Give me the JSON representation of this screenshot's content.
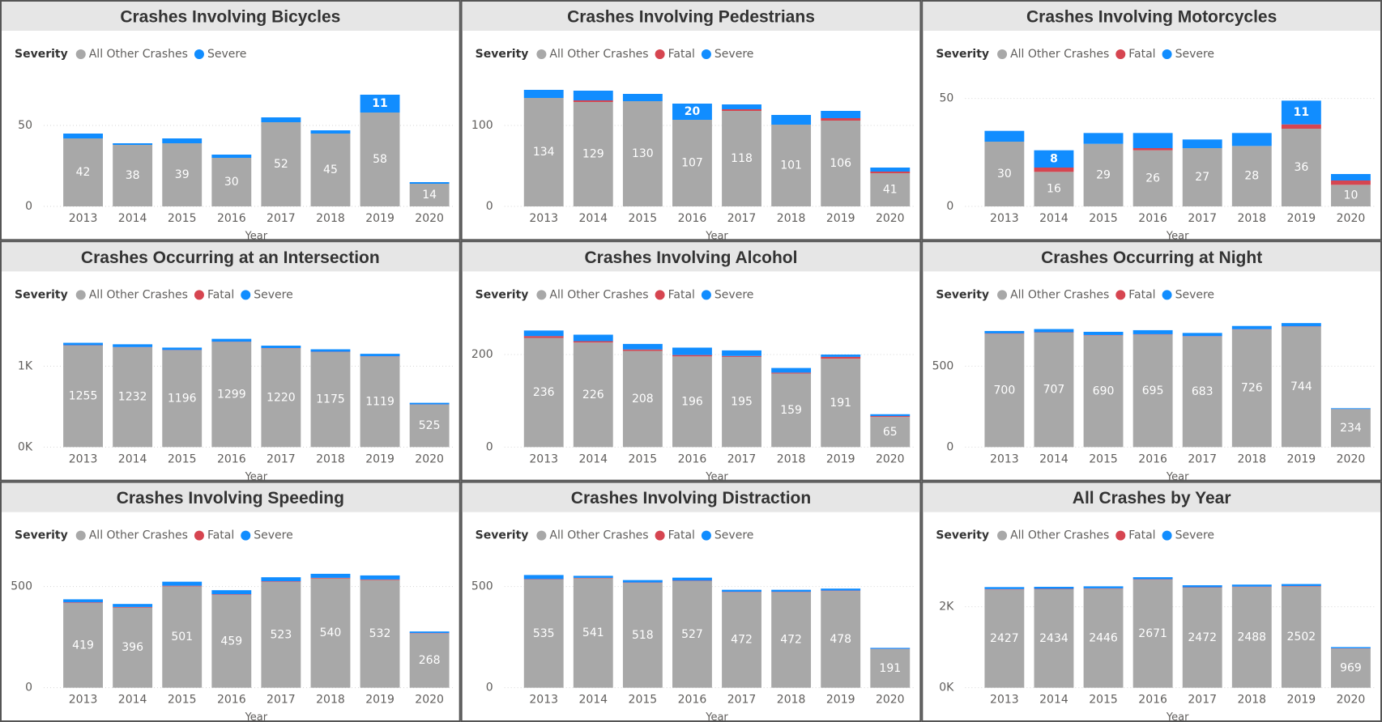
{
  "chart_data": [
    {
      "type": "bar",
      "title": "Crashes Involving Bicycles",
      "legend_title": "Severity",
      "x_label": "Year",
      "categories": [
        "2013",
        "2014",
        "2015",
        "2016",
        "2017",
        "2018",
        "2019",
        "2020"
      ],
      "series": [
        {
          "name": "All Other Crashes",
          "color": "#a8a8a8",
          "values": [
            42,
            38,
            39,
            30,
            52,
            45,
            58,
            14
          ],
          "data_labels": true
        },
        {
          "name": "Severe",
          "color": "#118dff",
          "values": [
            3,
            1,
            3,
            2,
            3,
            2,
            11,
            1
          ],
          "value_labels": [
            null,
            null,
            null,
            null,
            null,
            null,
            "11",
            null
          ]
        }
      ],
      "ylim": [
        0,
        80
      ],
      "yticks": [
        0,
        50
      ],
      "grid": true
    },
    {
      "type": "bar",
      "title": "Crashes Involving Pedestrians",
      "legend_title": "Severity",
      "x_label": "Year",
      "categories": [
        "2013",
        "2014",
        "2015",
        "2016",
        "2017",
        "2018",
        "2019",
        "2020"
      ],
      "series": [
        {
          "name": "All Other Crashes",
          "color": "#a8a8a8",
          "values": [
            134,
            129,
            130,
            107,
            118,
            101,
            106,
            41
          ],
          "data_labels": true
        },
        {
          "name": "Fatal",
          "color": "#d64550",
          "values": [
            0,
            2,
            0,
            0,
            2,
            0,
            3,
            2
          ]
        },
        {
          "name": "Severe",
          "color": "#118dff",
          "values": [
            10,
            12,
            9,
            20,
            6,
            12,
            9,
            5
          ],
          "value_labels": [
            null,
            null,
            null,
            "20",
            null,
            null,
            null,
            null
          ]
        }
      ],
      "ylim": [
        0,
        160
      ],
      "yticks": [
        0,
        100
      ],
      "grid": true
    },
    {
      "type": "bar",
      "title": "Crashes Involving Motorcycles",
      "legend_title": "Severity",
      "x_label": "Year",
      "categories": [
        "2013",
        "2014",
        "2015",
        "2016",
        "2017",
        "2018",
        "2019",
        "2020"
      ],
      "series": [
        {
          "name": "All Other Crashes",
          "color": "#a8a8a8",
          "values": [
            30,
            16,
            29,
            26,
            27,
            28,
            36,
            10
          ],
          "data_labels": true
        },
        {
          "name": "Fatal",
          "color": "#d64550",
          "values": [
            0,
            2,
            0,
            1,
            0,
            0,
            2,
            2
          ]
        },
        {
          "name": "Severe",
          "color": "#118dff",
          "values": [
            5,
            8,
            5,
            7,
            4,
            6,
            11,
            3
          ],
          "value_labels": [
            null,
            "8",
            null,
            null,
            null,
            null,
            "11",
            null
          ]
        }
      ],
      "ylim": [
        0,
        60
      ],
      "yticks": [
        0,
        50
      ],
      "grid": true
    },
    {
      "type": "bar",
      "title": "Crashes Occurring at an Intersection",
      "legend_title": "Severity",
      "x_label": "Year",
      "categories": [
        "2013",
        "2014",
        "2015",
        "2016",
        "2017",
        "2018",
        "2019",
        "2020"
      ],
      "series": [
        {
          "name": "All Other Crashes",
          "color": "#a8a8a8",
          "values": [
            1255,
            1232,
            1196,
            1299,
            1220,
            1175,
            1119,
            525
          ],
          "data_labels": true
        },
        {
          "name": "Fatal",
          "color": "#d64550",
          "values": [
            3,
            3,
            3,
            3,
            3,
            3,
            3,
            2
          ]
        },
        {
          "name": "Severe",
          "color": "#118dff",
          "values": [
            30,
            35,
            30,
            35,
            30,
            30,
            30,
            20
          ]
        }
      ],
      "ylim": [
        0,
        1600
      ],
      "yticks": [
        {
          "value": 0,
          "label": "0K"
        },
        {
          "value": 1000,
          "label": "1K"
        }
      ],
      "grid": true
    },
    {
      "type": "bar",
      "title": "Crashes Involving Alcohol",
      "legend_title": "Severity",
      "x_label": "Year",
      "categories": [
        "2013",
        "2014",
        "2015",
        "2016",
        "2017",
        "2018",
        "2019",
        "2020"
      ],
      "series": [
        {
          "name": "All Other Crashes",
          "color": "#a8a8a8",
          "values": [
            236,
            226,
            208,
            196,
            195,
            159,
            191,
            65
          ],
          "data_labels": true
        },
        {
          "name": "Fatal",
          "color": "#d64550",
          "values": [
            4,
            3,
            3,
            3,
            2,
            2,
            4,
            2
          ]
        },
        {
          "name": "Severe",
          "color": "#118dff",
          "values": [
            12,
            14,
            12,
            16,
            12,
            10,
            5,
            4
          ]
        }
      ],
      "ylim": [
        0,
        280
      ],
      "yticks": [
        0,
        200
      ],
      "grid": true
    },
    {
      "type": "bar",
      "title": "Crashes Occurring at Night",
      "legend_title": "Severity",
      "x_label": "Year",
      "categories": [
        "2013",
        "2014",
        "2015",
        "2016",
        "2017",
        "2018",
        "2019",
        "2020"
      ],
      "series": [
        {
          "name": "All Other Crashes",
          "color": "#a8a8a8",
          "values": [
            700,
            707,
            690,
            695,
            683,
            726,
            744,
            234
          ],
          "data_labels": true
        },
        {
          "name": "Fatal",
          "color": "#d64550",
          "values": [
            2,
            2,
            2,
            2,
            2,
            2,
            2,
            1
          ]
        },
        {
          "name": "Severe",
          "color": "#118dff",
          "values": [
            15,
            20,
            20,
            25,
            20,
            20,
            20,
            5
          ]
        }
      ],
      "ylim": [
        0,
        800
      ],
      "yticks": [
        0,
        500
      ],
      "grid": true
    },
    {
      "type": "bar",
      "title": "Crashes Involving Speeding",
      "legend_title": "Severity",
      "x_label": "Year",
      "categories": [
        "2013",
        "2014",
        "2015",
        "2016",
        "2017",
        "2018",
        "2019",
        "2020"
      ],
      "series": [
        {
          "name": "All Other Crashes",
          "color": "#a8a8a8",
          "values": [
            419,
            396,
            501,
            459,
            523,
            540,
            532,
            268
          ],
          "data_labels": true
        },
        {
          "name": "Fatal",
          "color": "#d64550",
          "values": [
            3,
            3,
            3,
            3,
            3,
            3,
            3,
            2
          ]
        },
        {
          "name": "Severe",
          "color": "#118dff",
          "values": [
            15,
            15,
            20,
            20,
            20,
            20,
            20,
            8
          ]
        }
      ],
      "ylim": [
        0,
        640
      ],
      "yticks": [
        0,
        500
      ],
      "grid": true
    },
    {
      "type": "bar",
      "title": "Crashes Involving Distraction",
      "legend_title": "Severity",
      "x_label": "Year",
      "categories": [
        "2013",
        "2014",
        "2015",
        "2016",
        "2017",
        "2018",
        "2019",
        "2020"
      ],
      "series": [
        {
          "name": "All Other Crashes",
          "color": "#a8a8a8",
          "values": [
            535,
            541,
            518,
            527,
            472,
            472,
            478,
            191
          ],
          "data_labels": true
        },
        {
          "name": "Fatal",
          "color": "#d64550",
          "values": [
            2,
            2,
            2,
            2,
            2,
            2,
            2,
            1
          ]
        },
        {
          "name": "Severe",
          "color": "#118dff",
          "values": [
            20,
            10,
            12,
            15,
            10,
            10,
            10,
            5
          ]
        }
      ],
      "ylim": [
        0,
        640
      ],
      "yticks": [
        0,
        500
      ],
      "grid": true
    },
    {
      "type": "bar",
      "title": "All Crashes by Year",
      "legend_title": "Severity",
      "x_label": "Year",
      "categories": [
        "2013",
        "2014",
        "2015",
        "2016",
        "2017",
        "2018",
        "2019",
        "2020"
      ],
      "series": [
        {
          "name": "All Other Crashes",
          "color": "#a8a8a8",
          "values": [
            2427,
            2434,
            2446,
            2671,
            2472,
            2488,
            2502,
            969
          ],
          "data_labels": true
        },
        {
          "name": "Fatal",
          "color": "#d64550",
          "values": [
            10,
            10,
            10,
            10,
            10,
            10,
            10,
            5
          ]
        },
        {
          "name": "Severe",
          "color": "#118dff",
          "values": [
            50,
            50,
            50,
            50,
            50,
            50,
            50,
            30
          ]
        }
      ],
      "ylim": [
        0,
        3200
      ],
      "yticks": [
        {
          "value": 0,
          "label": "0K"
        },
        {
          "value": 2000,
          "label": "2K"
        }
      ],
      "grid": true
    }
  ]
}
